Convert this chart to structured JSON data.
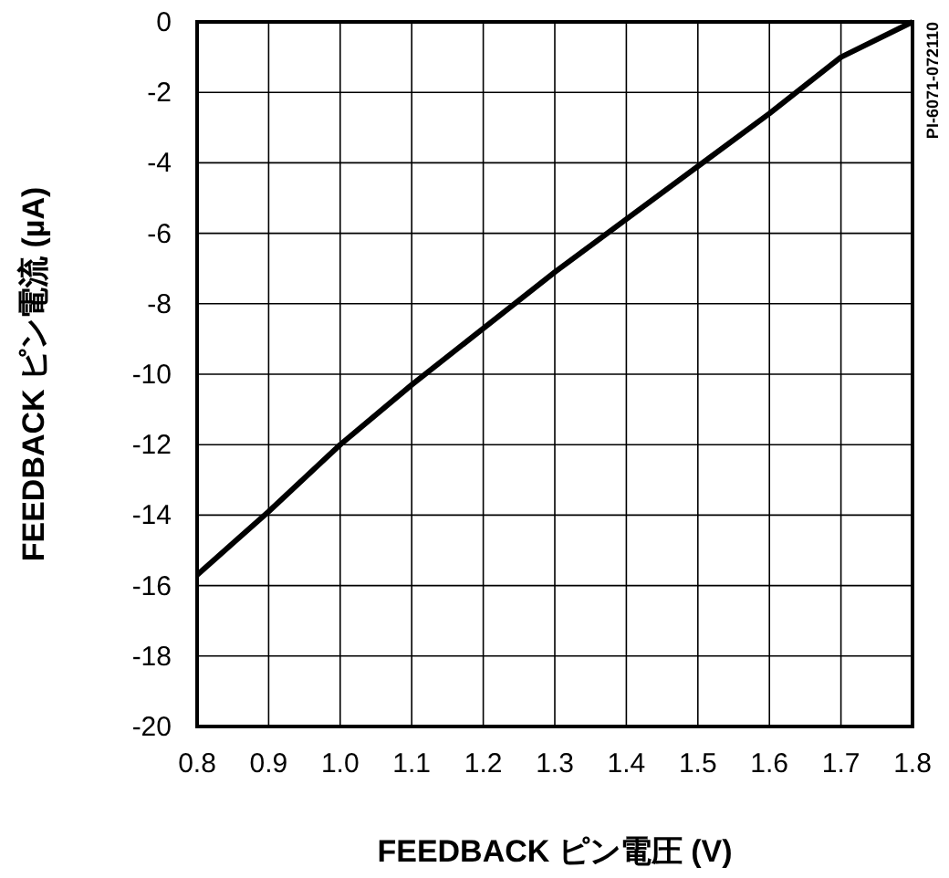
{
  "chart_data": {
    "type": "line",
    "xlabel": "FEEDBACK ピン電圧 (V)",
    "ylabel": "FEEDBACK ピン電流 (µA)",
    "annotations": [
      "PI-6071-072110"
    ],
    "x": [
      0.8,
      0.9,
      1.0,
      1.1,
      1.2,
      1.3,
      1.4,
      1.5,
      1.6,
      1.7,
      1.8
    ],
    "series": [
      {
        "color": "#000000",
        "values": [
          -15.7,
          -13.9,
          -12.0,
          -10.3,
          -8.7,
          -7.1,
          -5.6,
          -4.1,
          -2.6,
          -1.0,
          0
        ]
      }
    ],
    "xlim": [
      0.8,
      1.8
    ],
    "xticks": [
      {
        "value": 0.8,
        "label": "0.8"
      },
      {
        "value": 0.9,
        "label": "0.9"
      },
      {
        "value": 1.0,
        "label": "1.0"
      },
      {
        "value": 1.1,
        "label": "1.1"
      },
      {
        "value": 1.2,
        "label": "1.2"
      },
      {
        "value": 1.3,
        "label": "1.3"
      },
      {
        "value": 1.4,
        "label": "1.4"
      },
      {
        "value": 1.5,
        "label": "1.5"
      },
      {
        "value": 1.6,
        "label": "1.6"
      },
      {
        "value": 1.7,
        "label": "1.7"
      },
      {
        "value": 1.8,
        "label": "1.8"
      }
    ],
    "ylim": [
      -20,
      0
    ],
    "yticks": [
      -20,
      -18,
      -16,
      -14,
      -12,
      -10,
      -8,
      -6,
      -4,
      -2,
      0
    ],
    "grid": true,
    "marker": "none",
    "line_style": "solid"
  }
}
